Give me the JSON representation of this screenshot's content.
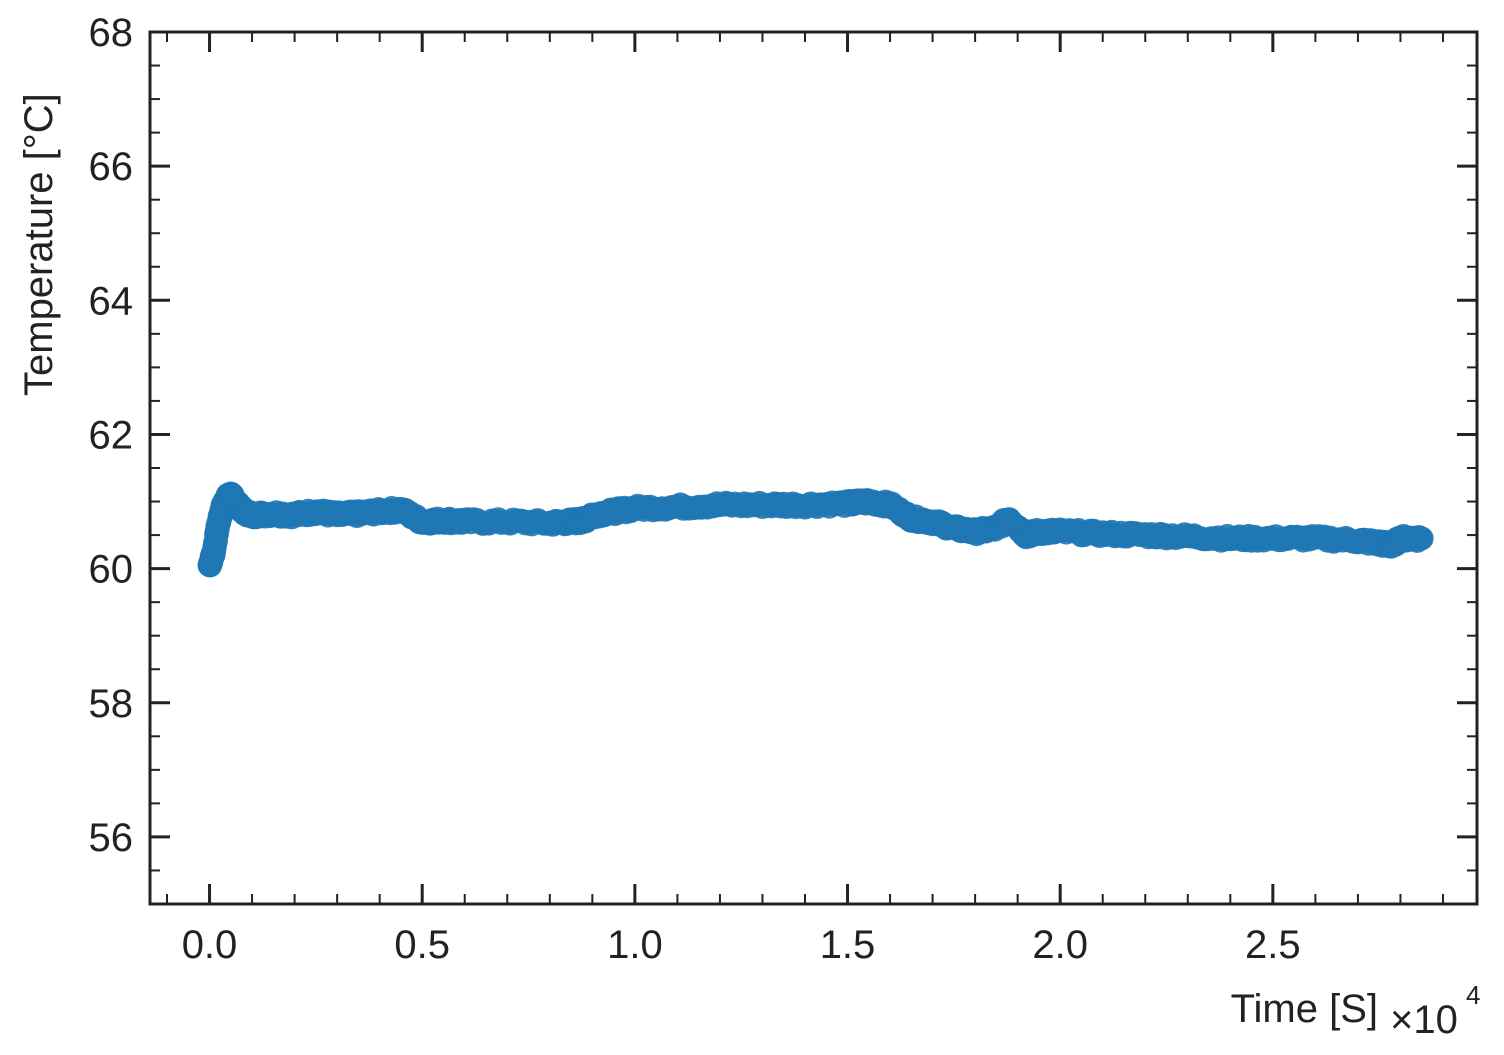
{
  "chart_data": {
    "type": "scatter",
    "title": "",
    "xlabel": "Time [S]",
    "ylabel": "Temperature [°C]",
    "x_offset_text": "×10",
    "x_offset_exponent": "4",
    "xlim": [
      -0.14,
      2.98
    ],
    "ylim": [
      55,
      68
    ],
    "x_ticks": [
      0.0,
      0.5,
      1.0,
      1.5,
      2.0,
      2.5
    ],
    "x_tick_labels": [
      "0.0",
      "0.5",
      "1.0",
      "1.5",
      "2.0",
      "2.5"
    ],
    "y_ticks": [
      56,
      58,
      60,
      62,
      64,
      66,
      68
    ],
    "y_tick_labels": [
      "56",
      "58",
      "60",
      "62",
      "64",
      "66",
      "68"
    ],
    "grid": false,
    "marker_color": "#1f77b4",
    "series": [
      {
        "x": [
          0.0,
          0.01,
          0.02,
          0.03,
          0.04,
          0.05,
          0.06,
          0.08,
          0.1,
          0.15,
          0.2,
          0.25,
          0.3,
          0.35,
          0.4,
          0.45,
          0.5,
          0.55,
          0.6,
          0.7,
          0.8,
          0.85,
          0.88,
          0.9,
          0.95,
          1.0,
          1.1,
          1.2,
          1.3,
          1.4,
          1.5,
          1.55,
          1.6,
          1.65,
          1.7,
          1.75,
          1.8,
          1.85,
          1.88,
          1.92,
          1.95,
          2.0,
          2.1,
          2.2,
          2.3,
          2.4,
          2.5,
          2.6,
          2.7,
          2.75,
          2.78,
          2.8,
          2.85
        ],
        "y": [
          60.05,
          60.25,
          60.65,
          60.9,
          61.05,
          61.1,
          61.0,
          60.85,
          60.8,
          60.82,
          60.8,
          60.85,
          60.8,
          60.82,
          60.85,
          60.88,
          60.7,
          60.72,
          60.7,
          60.7,
          60.68,
          60.7,
          60.72,
          60.8,
          60.85,
          60.9,
          60.92,
          60.95,
          60.95,
          60.95,
          60.97,
          61.0,
          60.95,
          60.75,
          60.7,
          60.6,
          60.55,
          60.6,
          60.75,
          60.5,
          60.55,
          60.55,
          60.52,
          60.5,
          60.48,
          60.45,
          60.45,
          60.45,
          60.42,
          60.38,
          60.35,
          60.45,
          60.45
        ]
      }
    ]
  }
}
